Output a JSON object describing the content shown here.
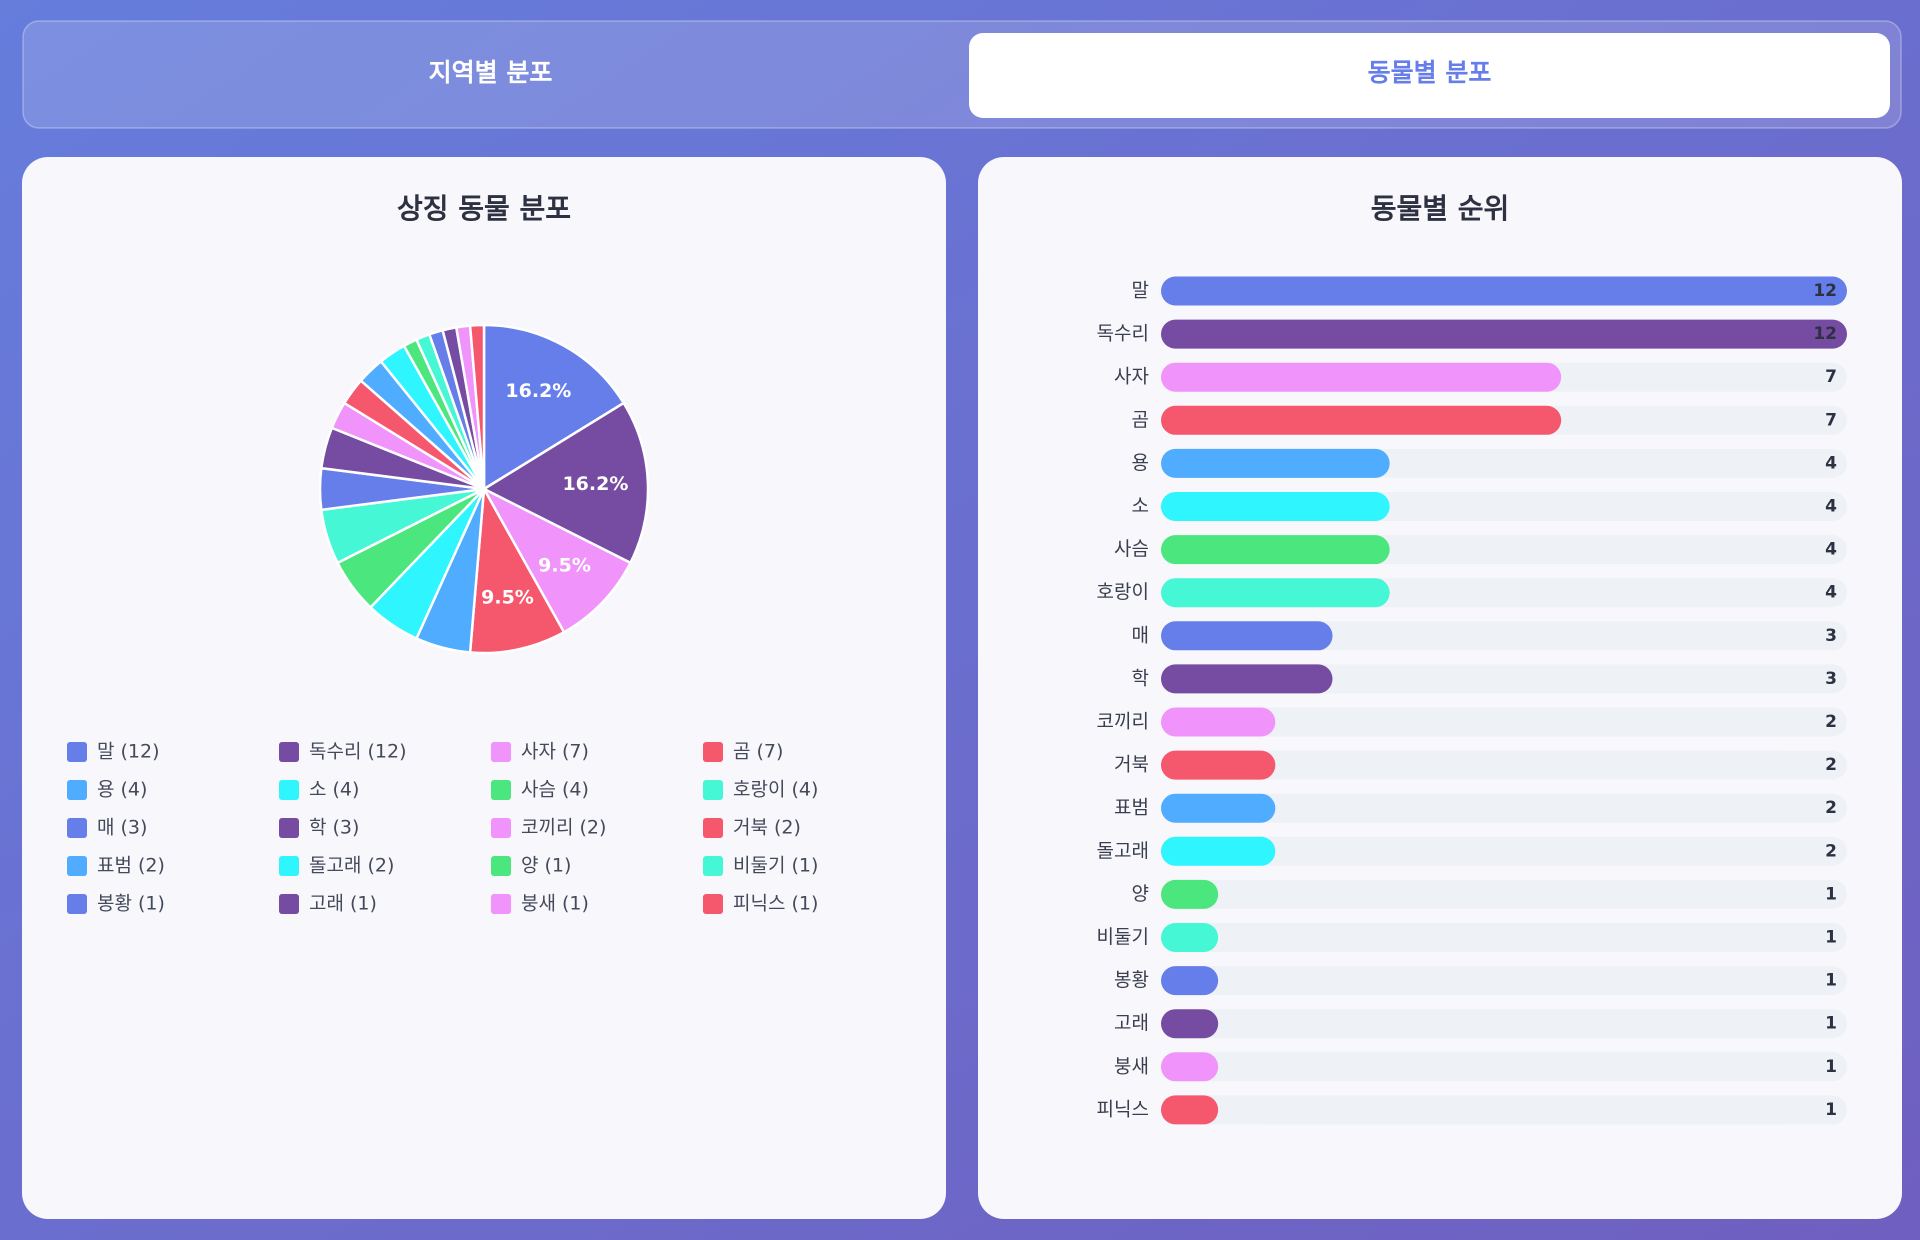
{
  "tabs": {
    "items": [
      "지역별 분포",
      "동물별 분포"
    ],
    "active": 1
  },
  "chart_data": [
    {
      "type": "pie",
      "title": "상징 동물 분포",
      "categories": [
        "말",
        "독수리",
        "사자",
        "곰",
        "용",
        "소",
        "사슴",
        "호랑이",
        "매",
        "학",
        "코끼리",
        "거북",
        "표범",
        "돌고래",
        "양",
        "비둘기",
        "봉황",
        "고래",
        "붕새",
        "피닉스"
      ],
      "values": [
        12,
        12,
        7,
        7,
        4,
        4,
        4,
        4,
        3,
        3,
        2,
        2,
        2,
        2,
        1,
        1,
        1,
        1,
        1,
        1
      ],
      "value_labels": [
        "16.2%",
        "16.2%",
        "9.5%",
        "9.5%",
        null,
        null,
        null,
        null,
        null,
        null,
        null,
        null,
        null,
        null,
        null,
        null,
        null,
        null,
        null,
        null
      ],
      "legend": [
        "말 (12)",
        "독수리 (12)",
        "사자 (7)",
        "곰 (7)",
        "용 (4)",
        "소 (4)",
        "사슴 (4)",
        "호랑이 (4)",
        "매 (3)",
        "학 (3)",
        "코끼리 (2)",
        "거북 (2)",
        "표범 (2)",
        "돌고래 (2)",
        "양 (1)",
        "비둘기 (1)",
        "봉황 (1)",
        "고래 (1)",
        "붕새 (1)",
        "피닉스 (1)"
      ],
      "colors": [
        "#667eea",
        "#764ba2",
        "#f093fb",
        "#f5576c",
        "#4facfe",
        "#2ef5fe",
        "#4be67e",
        "#46f7d6"
      ]
    },
    {
      "type": "hbar",
      "title": "동물별 순위",
      "categories": [
        "말",
        "독수리",
        "사자",
        "곰",
        "용",
        "소",
        "사슴",
        "호랑이",
        "매",
        "학",
        "코끼리",
        "거북",
        "표범",
        "돌고래",
        "양",
        "비둘기",
        "봉황",
        "고래",
        "붕새",
        "피닉스"
      ],
      "values": [
        12,
        12,
        7,
        7,
        4,
        4,
        4,
        4,
        3,
        3,
        2,
        2,
        2,
        2,
        1,
        1,
        1,
        1,
        1,
        1
      ],
      "xlim": [
        0,
        12
      ],
      "colors": [
        "#667eea",
        "#764ba2",
        "#f093fb",
        "#f5576c",
        "#4facfe",
        "#2ef5fe",
        "#4be67e",
        "#46f7d6"
      ]
    }
  ]
}
